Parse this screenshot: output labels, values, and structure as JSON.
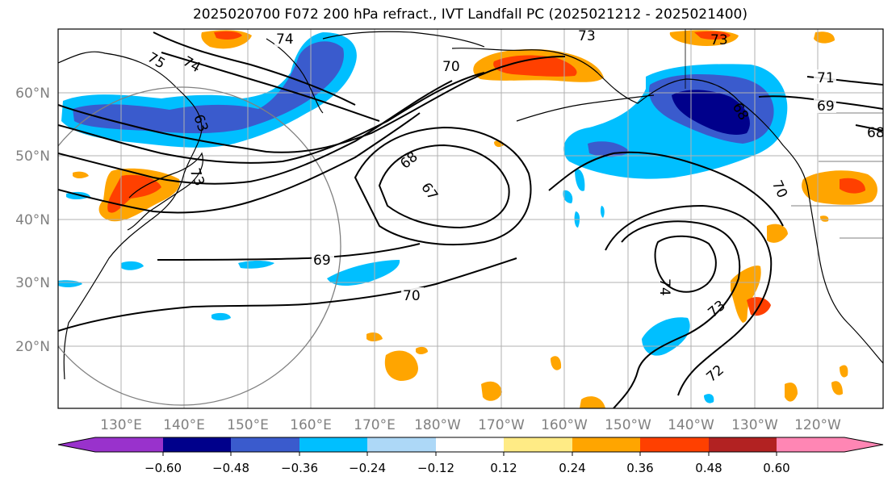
{
  "title": "2025020700 F072 200 hPa refract., IVT Landfall PC (2025021212 - 2025021400)",
  "map": {
    "lon_labels": [
      "130°E",
      "140°E",
      "150°E",
      "160°E",
      "170°E",
      "180°W",
      "170°W",
      "160°W",
      "150°W",
      "140°W",
      "130°W",
      "120°W"
    ],
    "lat_labels": [
      "60°N",
      "50°N",
      "40°N",
      "30°N",
      "20°N"
    ],
    "contour_labels": [
      "74",
      "75",
      "74",
      "73",
      "73",
      "71",
      "70",
      "69",
      "68",
      "68",
      "67",
      "70",
      "69",
      "70",
      "74",
      "73",
      "72",
      "73",
      "68",
      "63"
    ],
    "label_color": "#808080"
  },
  "colorbar": {
    "colors": [
      "#9932cc",
      "#00008b",
      "#3a5bcd",
      "#00bfff",
      "#add8f7",
      "#ffffff",
      "#ffeb85",
      "#ffa500",
      "#ff4000",
      "#b22222",
      "#ff86b4"
    ],
    "ticks": [
      "−0.60",
      "−0.48",
      "−0.36",
      "−0.24",
      "−0.12",
      "0.12",
      "0.24",
      "0.36",
      "0.48",
      "0.60"
    ]
  }
}
